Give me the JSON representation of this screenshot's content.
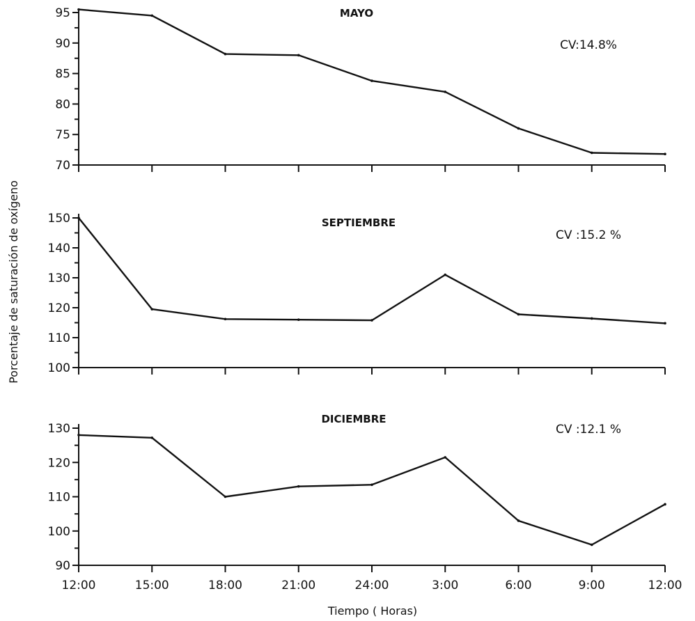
{
  "chart_data": [
    {
      "type": "line",
      "title": "MAYO",
      "annotation": "CV:14.8%",
      "categories": [
        "12:00",
        "15:00",
        "18:00",
        "21:00",
        "24:00",
        "3:00",
        "6:00",
        "9:00",
        "12:00"
      ],
      "values": [
        95.5,
        94.5,
        88.2,
        88.0,
        83.8,
        82.0,
        76.0,
        72.0,
        71.8
      ],
      "ylim": [
        70,
        95
      ],
      "yticks": [
        70,
        75,
        80,
        85,
        90,
        95
      ]
    },
    {
      "type": "line",
      "title": "SEPTIEMBRE",
      "annotation": "CV :15.2 %",
      "categories": [
        "12:00",
        "15:00",
        "18:00",
        "21:00",
        "24:00",
        "3:00",
        "6:00",
        "9:00",
        "12:00"
      ],
      "values": [
        150,
        119.5,
        116.2,
        116.0,
        115.8,
        131,
        117.8,
        116.4,
        114.8
      ],
      "ylim": [
        100,
        150
      ],
      "yticks": [
        100,
        110,
        120,
        130,
        140,
        150
      ]
    },
    {
      "type": "line",
      "title": "DICIEMBRE",
      "annotation": "CV :12.1 %",
      "categories": [
        "12:00",
        "15:00",
        "18:00",
        "21:00",
        "24:00",
        "3:00",
        "6:00",
        "9:00",
        "12:00"
      ],
      "values": [
        128,
        127.2,
        110,
        113,
        113.5,
        121.5,
        103,
        96,
        107.8
      ],
      "ylim": [
        90,
        130
      ],
      "yticks": [
        90,
        100,
        110,
        120,
        130
      ]
    }
  ],
  "ylabel": "Porcentaje de saturación de oxígeno",
  "xlabel": "Tiempo ( Horas)",
  "x_tick_labels": [
    "12:00",
    "15:00",
    "18:00",
    "21:00",
    "24:00",
    "3:00",
    "6:00",
    "9:00",
    "12:00"
  ]
}
